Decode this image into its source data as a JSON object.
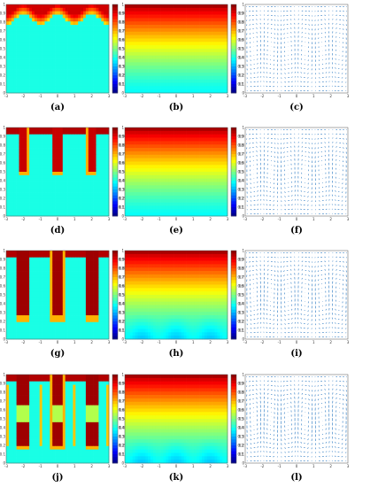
{
  "figure": {
    "colors": {
      "jet": [
        "#00007f",
        "#0000ff",
        "#007fff",
        "#00ffff",
        "#7fff7f",
        "#ffff00",
        "#ff7f00",
        "#ff0000",
        "#7f0000"
      ],
      "quiver": "#3f86c8",
      "frame": "#555555"
    },
    "rows": [
      {
        "panels": [
          {
            "id": "a",
            "label": "(a)",
            "type": "heatmap",
            "field": "fingers",
            "stage": 0
          },
          {
            "id": "b",
            "label": "(b)",
            "type": "heatmap",
            "field": "stratified",
            "stage": 0
          },
          {
            "id": "c",
            "label": "(c)",
            "type": "quiver",
            "stage": 0
          }
        ]
      },
      {
        "panels": [
          {
            "id": "d",
            "label": "(d)",
            "type": "heatmap",
            "field": "fingers",
            "stage": 1
          },
          {
            "id": "e",
            "label": "(e)",
            "type": "heatmap",
            "field": "stratified",
            "stage": 1
          },
          {
            "id": "f",
            "label": "(f)",
            "type": "quiver",
            "stage": 1
          }
        ]
      },
      {
        "panels": [
          {
            "id": "g",
            "label": "(g)",
            "type": "heatmap",
            "field": "fingers",
            "stage": 2
          },
          {
            "id": "h",
            "label": "(h)",
            "type": "heatmap",
            "field": "stratified",
            "stage": 2
          },
          {
            "id": "i",
            "label": "(i)",
            "type": "quiver",
            "stage": 2
          }
        ]
      },
      {
        "panels": [
          {
            "id": "j",
            "label": "(j)",
            "type": "heatmap",
            "field": "fingers",
            "stage": 3
          },
          {
            "id": "k",
            "label": "(k)",
            "type": "heatmap",
            "field": "stratified",
            "stage": 3
          },
          {
            "id": "l",
            "label": "(l)",
            "type": "quiver",
            "stage": 3
          }
        ]
      }
    ],
    "x_ticks": [
      "-3",
      "-2",
      "-1",
      "0",
      "1",
      "2",
      "3"
    ],
    "y_ticks": [
      "0",
      "0.1",
      "0.2",
      "0.3",
      "0.4",
      "0.5",
      "0.6",
      "0.7",
      "0.8",
      "0.9",
      "1"
    ],
    "colorbar_ticks": [
      "0.1",
      "0.2",
      "0.3",
      "0.4",
      "0.5",
      "0.6",
      "0.7",
      "0.8",
      "0.9"
    ]
  }
}
